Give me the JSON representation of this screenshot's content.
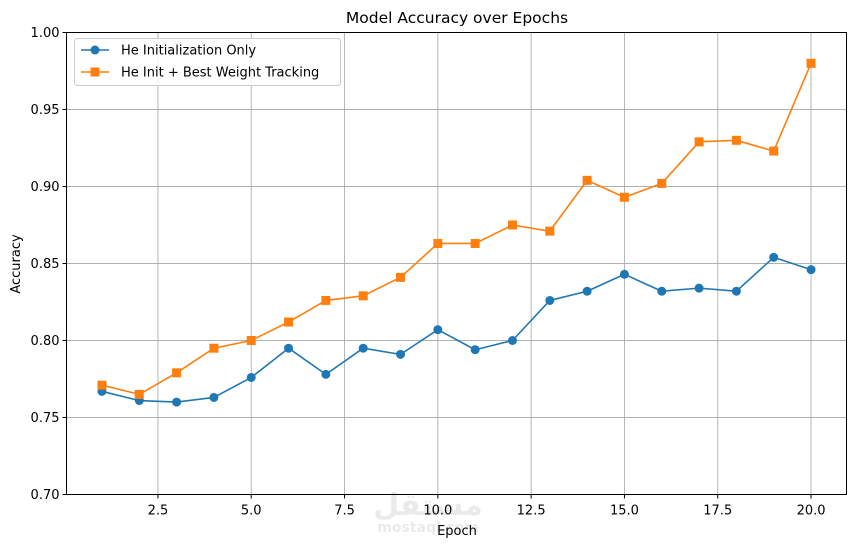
{
  "chart_data": {
    "type": "line",
    "title": "Model Accuracy over Epochs",
    "xlabel": "Epoch",
    "ylabel": "Accuracy",
    "xlim": [
      0.05,
      20.95
    ],
    "ylim": [
      0.7,
      1.0
    ],
    "xticks": [
      2.5,
      5.0,
      7.5,
      10.0,
      12.5,
      15.0,
      17.5,
      20.0
    ],
    "xtick_labels": [
      "2.5",
      "5.0",
      "7.5",
      "10.0",
      "12.5",
      "15.0",
      "17.5",
      "20.0"
    ],
    "yticks": [
      0.7,
      0.75,
      0.8,
      0.85,
      0.9,
      0.95,
      1.0
    ],
    "ytick_labels": [
      "0.70",
      "0.75",
      "0.80",
      "0.85",
      "0.90",
      "0.95",
      "1.00"
    ],
    "grid": true,
    "legend_position": "top-left",
    "x": [
      1,
      2,
      3,
      4,
      5,
      6,
      7,
      8,
      9,
      10,
      11,
      12,
      13,
      14,
      15,
      16,
      17,
      18,
      19,
      20
    ],
    "series": [
      {
        "name": "He Initialization Only",
        "color": "#1f77b4",
        "marker": "circle",
        "values": [
          0.767,
          0.761,
          0.76,
          0.763,
          0.776,
          0.795,
          0.778,
          0.795,
          0.791,
          0.807,
          0.794,
          0.8,
          0.826,
          0.832,
          0.843,
          0.832,
          0.834,
          0.832,
          0.854,
          0.846
        ]
      },
      {
        "name": "He Init + Best Weight Tracking",
        "color": "#ff7f0e",
        "marker": "square",
        "values": [
          0.771,
          0.765,
          0.779,
          0.795,
          0.8,
          0.812,
          0.826,
          0.829,
          0.841,
          0.863,
          0.863,
          0.875,
          0.871,
          0.904,
          0.893,
          0.902,
          0.929,
          0.93,
          0.923,
          0.98
        ]
      }
    ]
  },
  "watermark": {
    "arabic": "مستقل",
    "latin": "mostaql.com"
  }
}
